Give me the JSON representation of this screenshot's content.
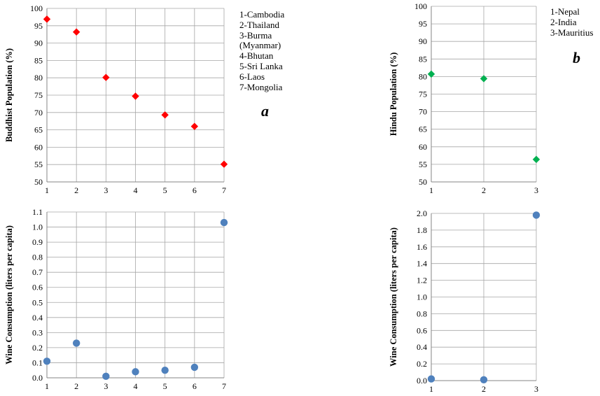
{
  "chart_data": [
    {
      "id": "a-top",
      "type": "scatter",
      "ylabel": "Buddhist Population (%)",
      "xlabel": "",
      "x": [
        1,
        2,
        3,
        4,
        5,
        6,
        7
      ],
      "series": [
        {
          "values": [
            96.9,
            93.2,
            80.1,
            74.7,
            69.3,
            66.0,
            55.1
          ]
        }
      ],
      "xlim": [
        1,
        7
      ],
      "ylim": [
        50,
        100
      ],
      "yticks": [
        50,
        55,
        60,
        65,
        70,
        75,
        80,
        85,
        90,
        95,
        100
      ],
      "marker": "diamond",
      "color": "#ff0000",
      "grid": true
    },
    {
      "id": "b-top",
      "type": "scatter",
      "ylabel": "Hindu Population (%)",
      "xlabel": "",
      "x": [
        1,
        2,
        3
      ],
      "series": [
        {
          "values": [
            80.7,
            79.4,
            56.4
          ]
        }
      ],
      "xlim": [
        1,
        3
      ],
      "ylim": [
        50,
        100
      ],
      "yticks": [
        50,
        55,
        60,
        65,
        70,
        75,
        80,
        85,
        90,
        95,
        100
      ],
      "marker": "diamond",
      "color": "#00b050",
      "grid": true
    },
    {
      "id": "a-bottom",
      "type": "scatter",
      "ylabel": "Wine Consumption (liters per capita)",
      "xlabel": "",
      "x": [
        1,
        2,
        3,
        4,
        5,
        6,
        7
      ],
      "series": [
        {
          "values": [
            0.11,
            0.23,
            0.01,
            0.04,
            0.05,
            0.07,
            1.03
          ]
        }
      ],
      "xlim": [
        1,
        7
      ],
      "ylim": [
        0,
        1.1
      ],
      "yticks": [
        "0.0",
        "0.1",
        "0.2",
        "0.3",
        "0.4",
        "0.5",
        "0.6",
        "0.7",
        "0.8",
        "0.9",
        "1.0",
        "1.1"
      ],
      "marker": "circle",
      "color": "#4f81bd",
      "grid": true
    },
    {
      "id": "b-bottom",
      "type": "scatter",
      "ylabel": "Wine Consumption (liters per capita)",
      "xlabel": "",
      "x": [
        1,
        2,
        3
      ],
      "series": [
        {
          "values": [
            0.02,
            0.01,
            1.98
          ]
        }
      ],
      "xlim": [
        1,
        3
      ],
      "ylim": [
        0,
        2.0
      ],
      "yticks": [
        "0.0",
        "0.2",
        "0.4",
        "0.6",
        "0.8",
        "1.0",
        "1.2",
        "1.4",
        "1.6",
        "1.8",
        "2.0"
      ],
      "marker": "circle",
      "color": "#4f81bd",
      "grid": true
    }
  ],
  "legend_a": [
    "1-Cambodia",
    "2-Thailand",
    "3-Burma",
    "(Myanmar)",
    "4-Bhutan",
    "5-Sri Lanka",
    "6-Laos",
    "7-Mongolia"
  ],
  "legend_b": [
    "1-Nepal",
    "2-India",
    "3-Mauritius"
  ],
  "panel_a_label": "a",
  "panel_b_label": "b"
}
